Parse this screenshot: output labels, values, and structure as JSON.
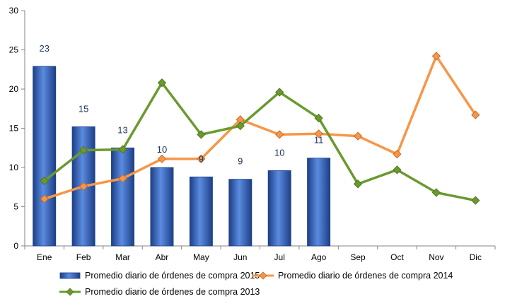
{
  "chart_data": {
    "type": "bar+line",
    "categories": [
      "Ene",
      "Feb",
      "Mar",
      "Abr",
      "May",
      "Jun",
      "Jul",
      "Ago",
      "Sep",
      "Oct",
      "Nov",
      "Dic"
    ],
    "ylim": [
      0,
      30
    ],
    "yticks": [
      0,
      5,
      10,
      15,
      20,
      25,
      30
    ],
    "grid": false,
    "legend_position": "bottom",
    "series": [
      {
        "name": "Promedio diario de órdenes de compra 2015",
        "kind": "bar",
        "color": "#2e5fb8",
        "values": [
          22.9,
          15.2,
          12.5,
          10.0,
          8.8,
          8.5,
          9.6,
          11.2,
          null,
          null,
          null,
          null
        ],
        "data_labels": [
          "23",
          "15",
          "13",
          "10",
          "9",
          "9",
          "10",
          "11",
          "",
          "",
          "",
          ""
        ]
      },
      {
        "name": "Promedio diario de órdenes de compra 2014",
        "kind": "line",
        "color": "#f79646",
        "values": [
          6.0,
          7.6,
          8.6,
          11.1,
          11.1,
          16.1,
          14.2,
          14.3,
          14.0,
          11.7,
          24.2,
          16.7
        ]
      },
      {
        "name": "Promedio diario de órdenes de compra 2013",
        "kind": "line",
        "color": "#6a9a2e",
        "values": [
          8.3,
          12.2,
          12.3,
          20.8,
          14.2,
          15.3,
          19.6,
          16.3,
          7.9,
          9.7,
          6.8,
          5.8
        ]
      }
    ]
  }
}
